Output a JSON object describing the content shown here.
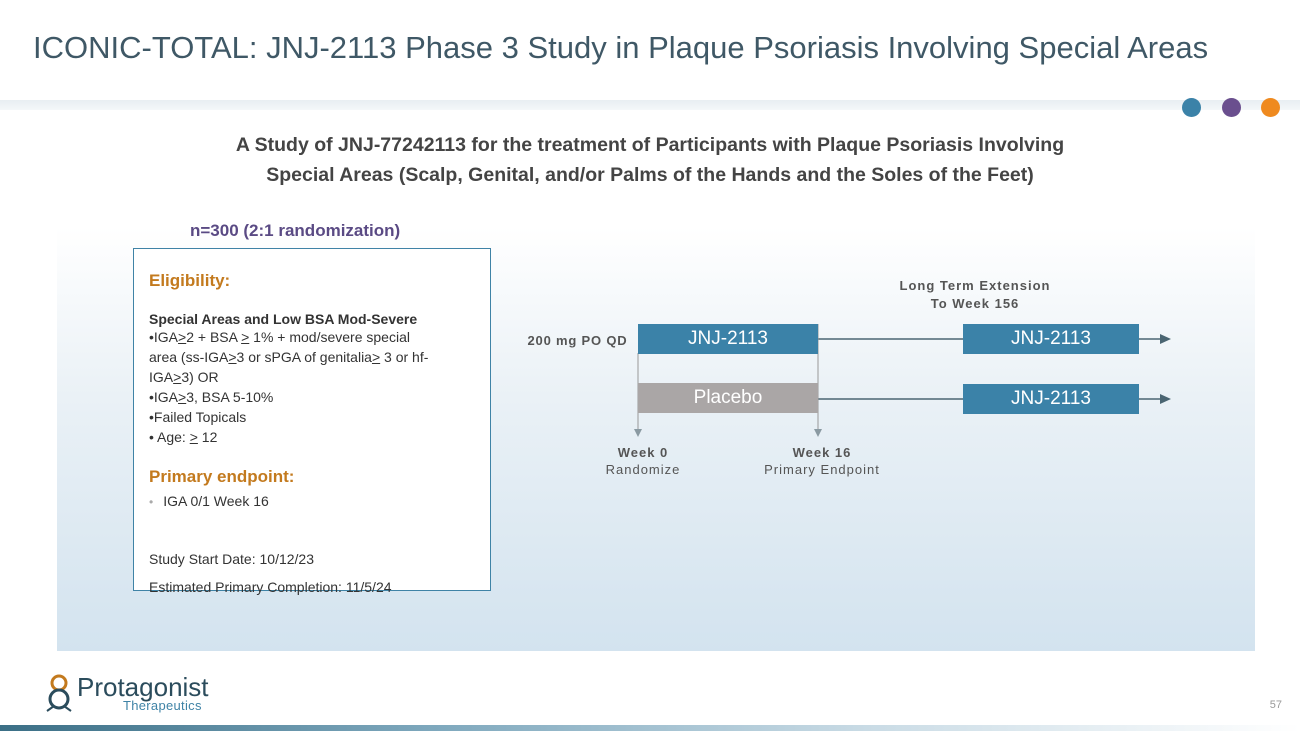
{
  "title": "ICONIC-TOTAL: JNJ-2113 Phase 3 Study in Plaque Psoriasis Involving Special Areas",
  "subtitle_line1": "A Study of JNJ-77242113 for the treatment of Participants with Plaque Psoriasis Involving",
  "subtitle_line2": "Special Areas (Scalp, Genital, and/or Palms of the Hands and the Soles of the Feet)",
  "colors": {
    "dot1": "#3b82a8",
    "dot2": "#6a4f8e",
    "dot3": "#ef8a1f",
    "accent_blue": "#3b82a8",
    "accent_orange": "#c37a1e",
    "purple": "#5a4a84",
    "placebo_grey": "#aaa6a6"
  },
  "randomization": "n=300 (2:1 randomization)",
  "eligibility": {
    "heading": "Eligibility:",
    "subheading": "Special Areas and Low BSA Mod-Severe",
    "l1_a": "•IGA",
    "l1_b": ">",
    "l1_c": "2 + BSA ",
    "l1_d": ">",
    "l1_e": " 1% + mod/severe special",
    "l2_a": "area (ss-IGA",
    "l2_b": ">",
    "l2_c": "3 or sPGA of genitalia",
    "l2_d": ">",
    "l2_e": " 3 or hf-",
    "l3_a": "IGA",
    "l3_b": ">",
    "l3_c": "3) OR",
    "l4_a": "•IGA",
    "l4_b": ">",
    "l4_c": "3, BSA 5-10%",
    "l5": "•Failed Topicals",
    "l6_a": "• Age: ",
    "l6_b": ">",
    "l6_c": " 12"
  },
  "primary": {
    "heading": "Primary endpoint:",
    "bullet": "•",
    "item": "IGA 0/1 Week 16"
  },
  "study_start": "Study Start Date: 10/12/23",
  "est_completion": "Estimated Primary Completion: 11/5/24",
  "design": {
    "ext_line1": "Long Term Extension",
    "ext_line2": "To Week 156",
    "dose": "200 mg PO QD",
    "arm1_label": "JNJ-2113",
    "arm2_label": "Placebo",
    "ext1_label": "JNJ-2113",
    "ext2_label": "JNJ-2113",
    "week0": "Week 0",
    "week0_sub": "Randomize",
    "week16": "Week 16",
    "week16_sub": "Primary Endpoint"
  },
  "logo": {
    "name": "Protagonist",
    "sub": "Therapeutics"
  },
  "page_number": "57"
}
